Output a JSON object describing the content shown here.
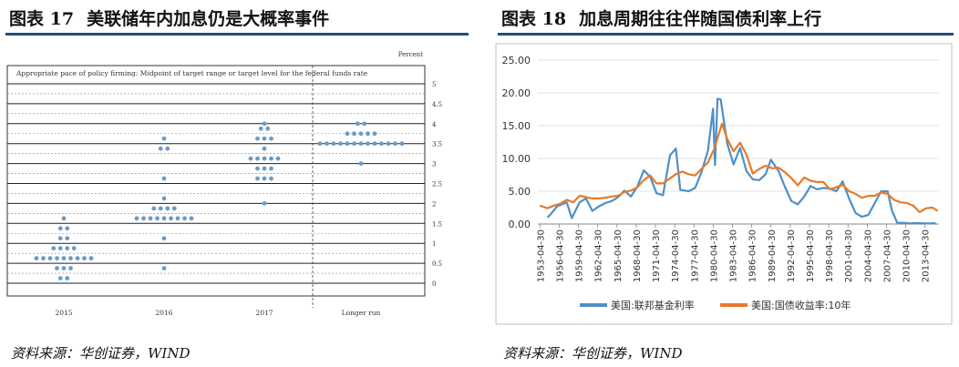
{
  "left": {
    "title_num": "图表 17",
    "title_text": "美联储年内加息仍是大概率事件",
    "source": "资料来源：华创证券，WIND",
    "chart_data": {
      "type": "scatter",
      "title": "Appropriate pace of policy firming: Midpoint of target range or target level for the federal funds rate",
      "unit_label": "Percent",
      "ylim": [
        0,
        5
      ],
      "yticks": [
        "0",
        "0.5",
        "1",
        "1.5",
        "2",
        "2.5",
        "3",
        "3.5",
        "4",
        "4.5",
        "5"
      ],
      "categories": [
        "2015",
        "2016",
        "2017",
        "Longer run"
      ],
      "series": [
        {
          "category": "2015",
          "points": [
            {
              "y": 0.125,
              "count": 2
            },
            {
              "y": 0.375,
              "count": 3
            },
            {
              "y": 0.625,
              "count": 9
            },
            {
              "y": 0.875,
              "count": 4
            },
            {
              "y": 1.125,
              "count": 2
            },
            {
              "y": 1.375,
              "count": 2
            },
            {
              "y": 1.625,
              "count": 1
            }
          ]
        },
        {
          "category": "2016",
          "points": [
            {
              "y": 0.375,
              "count": 1
            },
            {
              "y": 1.125,
              "count": 1
            },
            {
              "y": 1.625,
              "count": 9
            },
            {
              "y": 1.875,
              "count": 4
            },
            {
              "y": 2.125,
              "count": 1
            },
            {
              "y": 2.625,
              "count": 1
            },
            {
              "y": 3.375,
              "count": 2
            },
            {
              "y": 3.625,
              "count": 1
            }
          ]
        },
        {
          "category": "2017",
          "points": [
            {
              "y": 2.0,
              "count": 1
            },
            {
              "y": 2.625,
              "count": 3
            },
            {
              "y": 2.875,
              "count": 3
            },
            {
              "y": 3.125,
              "count": 5
            },
            {
              "y": 3.375,
              "count": 1
            },
            {
              "y": 3.625,
              "count": 3
            },
            {
              "y": 3.875,
              "count": 2
            },
            {
              "y": 4.0,
              "count": 1
            }
          ]
        },
        {
          "category": "Longer run",
          "points": [
            {
              "y": 3.0,
              "count": 1
            },
            {
              "y": 3.5,
              "count": 13
            },
            {
              "y": 3.75,
              "count": 5
            },
            {
              "y": 4.0,
              "count": 2
            }
          ]
        }
      ]
    }
  },
  "right": {
    "title_num": "图表 18",
    "title_text": "加息周期往往伴随国债利率上行",
    "source": "资料来源：华创证券，WIND",
    "chart_data": {
      "type": "line",
      "ylim": [
        0,
        25
      ],
      "yticks": [
        "0.00",
        "5.00",
        "10.00",
        "15.00",
        "20.00",
        "25.00"
      ],
      "xticks": [
        "1953-04-30",
        "1956-04-30",
        "1959-04-30",
        "1962-04-30",
        "1965-04-30",
        "1968-04-30",
        "1971-04-30",
        "1974-04-30",
        "1977-04-30",
        "1980-04-30",
        "1983-04-30",
        "1986-04-30",
        "1989-04-30",
        "1992-04-30",
        "1995-04-30",
        "1998-04-30",
        "2001-04-30",
        "2004-04-30",
        "2007-04-30",
        "2010-04-30",
        "2013-04-30"
      ],
      "xlim": [
        1953.0,
        2015.5
      ],
      "series": [
        {
          "name": "美国:联邦基金利率",
          "color": "#4f8fc8",
          "x": [
            1954.5,
            1955,
            1956,
            1957.5,
            1958.3,
            1959.5,
            1960.5,
            1961.5,
            1962.5,
            1963.5,
            1964.5,
            1965.5,
            1966.5,
            1967.5,
            1968.5,
            1969.5,
            1970.5,
            1971.5,
            1972.5,
            1973.6,
            1974.5,
            1975.2,
            1976.5,
            1977.5,
            1978.5,
            1979.5,
            1980.3,
            1980.6,
            1981.0,
            1981.5,
            1982.5,
            1983.5,
            1984.5,
            1985.5,
            1986.5,
            1987.5,
            1988.5,
            1989.3,
            1990.5,
            1991.5,
            1992.5,
            1993.5,
            1994.5,
            1995.5,
            1996.5,
            1997.5,
            1998.5,
            1999.5,
            2000.5,
            2001.5,
            2002.5,
            2003.5,
            2004.5,
            2005.5,
            2006.5,
            2007.5,
            2008.2,
            2009,
            2010,
            2011,
            2012,
            2013,
            2014,
            2015
          ],
          "y": [
            1.0,
            1.5,
            2.7,
            3.3,
            0.9,
            3.3,
            3.9,
            2.0,
            2.7,
            3.2,
            3.5,
            4.1,
            5.1,
            4.2,
            5.7,
            8.2,
            7.2,
            4.7,
            4.4,
            10.5,
            11.5,
            5.2,
            5.0,
            5.5,
            7.9,
            11.2,
            17.6,
            9.0,
            19.1,
            19.0,
            12.3,
            9.1,
            11.6,
            8.1,
            6.8,
            6.7,
            7.6,
            9.8,
            8.1,
            5.7,
            3.5,
            3.0,
            4.2,
            5.8,
            5.3,
            5.5,
            5.4,
            5.0,
            6.5,
            3.9,
            1.7,
            1.1,
            1.4,
            3.2,
            5.0,
            5.0,
            2.0,
            0.2,
            0.18,
            0.1,
            0.14,
            0.11,
            0.09,
            0.13
          ]
        },
        {
          "name": "美国:国债收益率:10年",
          "color": "#e8792b",
          "x": [
            1953.3,
            1954.5,
            1955.5,
            1956.5,
            1957.5,
            1958.5,
            1959.5,
            1960.5,
            1961.5,
            1962.5,
            1963.5,
            1964.5,
            1965.5,
            1966.5,
            1967.5,
            1968.5,
            1969.5,
            1970.5,
            1971.5,
            1972.5,
            1973.5,
            1974.5,
            1975.5,
            1976.5,
            1977.5,
            1978.5,
            1979.5,
            1980.5,
            1981.7,
            1982.5,
            1983.5,
            1984.5,
            1985.5,
            1986.5,
            1987.5,
            1988.5,
            1989.5,
            1990.5,
            1991.5,
            1992.5,
            1993.5,
            1994.5,
            1995.5,
            1996.5,
            1997.5,
            1998.5,
            1999.5,
            2000.5,
            2001.5,
            2002.5,
            2003.5,
            2004.5,
            2005.5,
            2006.5,
            2007.5,
            2008.5,
            2009.5,
            2010.5,
            2011.5,
            2012.5,
            2013.5,
            2014.5,
            2015.3
          ],
          "y": [
            2.8,
            2.4,
            2.8,
            3.1,
            3.7,
            3.3,
            4.3,
            4.1,
            3.9,
            3.9,
            4.0,
            4.2,
            4.3,
            4.9,
            5.1,
            5.6,
            6.7,
            7.4,
            6.2,
            6.2,
            6.9,
            7.6,
            8.0,
            7.6,
            7.4,
            8.4,
            9.4,
            11.5,
            15.3,
            13.0,
            11.1,
            12.4,
            10.6,
            7.7,
            8.4,
            8.9,
            8.5,
            8.6,
            7.9,
            7.0,
            5.9,
            7.1,
            6.6,
            6.4,
            6.4,
            5.3,
            5.6,
            6.0,
            5.0,
            4.6,
            4.0,
            4.3,
            4.3,
            4.8,
            4.6,
            3.7,
            3.3,
            3.2,
            2.8,
            1.8,
            2.4,
            2.5,
            2.0
          ]
        }
      ]
    }
  }
}
